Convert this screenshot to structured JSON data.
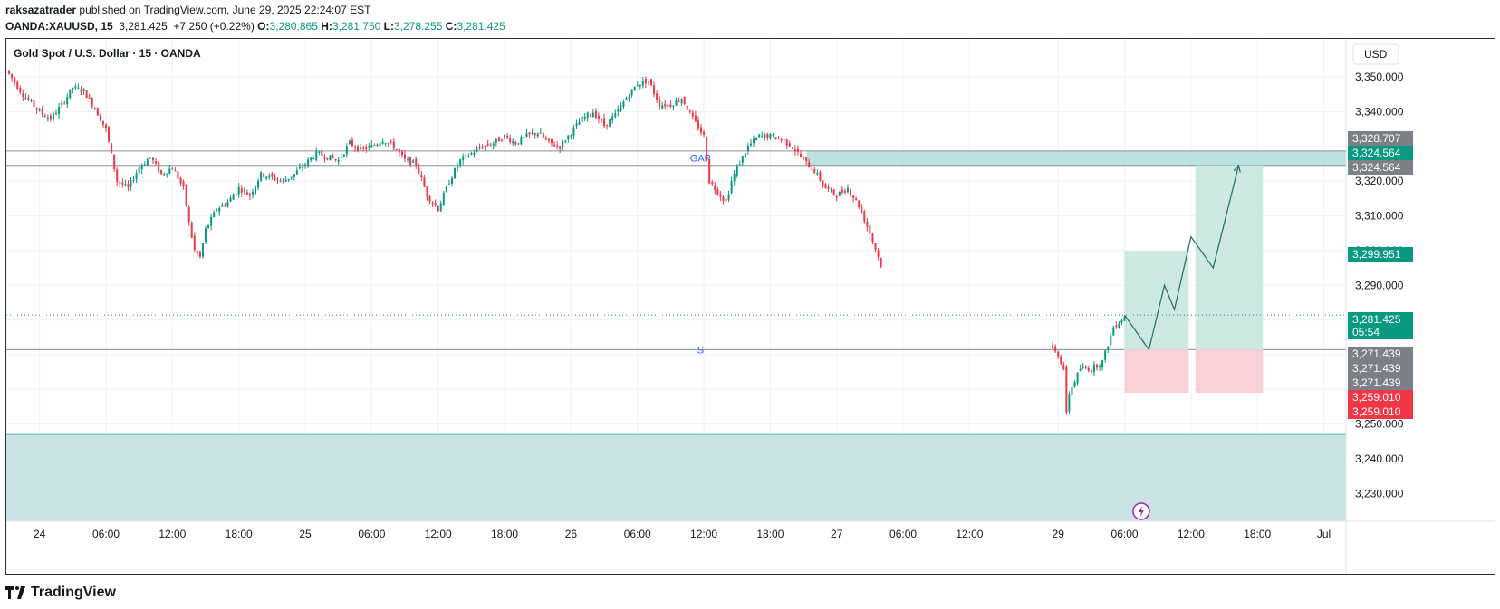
{
  "header": {
    "author": "raksazatrader",
    "published": "published on TradingView.com, June 29, 2025 22:24:07 EST",
    "symbol": "OANDA:XAUUSD, 15",
    "last": "3,281.425",
    "change": "+7.250 (+0.22%)",
    "open_label": "O:",
    "open": "3,280.865",
    "high_label": "H:",
    "high": "3,281.750",
    "low_label": "L:",
    "low": "3,278.255",
    "close_label": "C:",
    "close": "3,281.425"
  },
  "footer": {
    "brand": "TradingView"
  },
  "chart_data": {
    "type": "candlestick",
    "title": "Gold Spot / U.S. Dollar · 15 · OANDA",
    "currency": "USD",
    "ylim": [
      3222,
      3361
    ],
    "y_ticks": [
      "3,350.000",
      "3,340.000",
      "3,330.000",
      "3,320.000",
      "3,310.000",
      "3,300.000",
      "3,290.000",
      "3,280.000",
      "3,270.000",
      "3,260.000",
      "3,250.000",
      "3,240.000",
      "3,230.000"
    ],
    "y_tick_values": [
      3350,
      3340,
      3330,
      3320,
      3310,
      3300,
      3290,
      3280,
      3270,
      3260,
      3250,
      3240,
      3230
    ],
    "x_ticks": [
      {
        "label": "24",
        "hour": 0
      },
      {
        "label": "06:00",
        "hour": 6
      },
      {
        "label": "12:00",
        "hour": 12
      },
      {
        "label": "18:00",
        "hour": 18
      },
      {
        "label": "25",
        "hour": 24
      },
      {
        "label": "06:00",
        "hour": 30
      },
      {
        "label": "12:00",
        "hour": 36
      },
      {
        "label": "18:00",
        "hour": 42
      },
      {
        "label": "26",
        "hour": 48
      },
      {
        "label": "06:00",
        "hour": 54
      },
      {
        "label": "12:00",
        "hour": 60
      },
      {
        "label": "18:00",
        "hour": 66
      },
      {
        "label": "27",
        "hour": 72
      },
      {
        "label": "06:00",
        "hour": 78
      },
      {
        "label": "12:00",
        "hour": 84
      },
      {
        "label": "29",
        "hour": 92
      },
      {
        "label": "06:00",
        "hour": 98
      },
      {
        "label": "12:00",
        "hour": 104
      },
      {
        "label": "18:00",
        "hour": 110
      },
      {
        "label": "Jul",
        "hour": 116
      }
    ],
    "x_range_hours": [
      -3,
      118
    ],
    "price_path": [
      [
        -3,
        3352
      ],
      [
        -1.5,
        3345
      ],
      [
        0,
        3340
      ],
      [
        1,
        3338
      ],
      [
        2,
        3342
      ],
      [
        3,
        3347
      ],
      [
        4,
        3346
      ],
      [
        5,
        3341
      ],
      [
        6,
        3335
      ],
      [
        7,
        3320
      ],
      [
        8,
        3318
      ],
      [
        9,
        3324
      ],
      [
        10,
        3327
      ],
      [
        11,
        3322
      ],
      [
        12,
        3324
      ],
      [
        13,
        3318
      ],
      [
        13.5,
        3308
      ],
      [
        14,
        3300
      ],
      [
        14.5,
        3298
      ],
      [
        15,
        3306
      ],
      [
        16,
        3312
      ],
      [
        17,
        3314
      ],
      [
        18,
        3318
      ],
      [
        19,
        3316
      ],
      [
        20,
        3322
      ],
      [
        21,
        3321
      ],
      [
        22,
        3320
      ],
      [
        23,
        3322
      ],
      [
        24,
        3325
      ],
      [
        25,
        3328
      ],
      [
        26,
        3327
      ],
      [
        27,
        3326
      ],
      [
        28,
        3331
      ],
      [
        29,
        3329
      ],
      [
        30,
        3330
      ],
      [
        31,
        3332
      ],
      [
        32,
        3330
      ],
      [
        33,
        3326
      ],
      [
        34,
        3325
      ],
      [
        35,
        3316
      ],
      [
        36,
        3312
      ],
      [
        37,
        3320
      ],
      [
        38,
        3326
      ],
      [
        39,
        3328
      ],
      [
        40,
        3330
      ],
      [
        41,
        3331
      ],
      [
        42,
        3333
      ],
      [
        43,
        3331
      ],
      [
        44,
        3333
      ],
      [
        45,
        3334
      ],
      [
        46,
        3331
      ],
      [
        47,
        3330
      ],
      [
        48,
        3334
      ],
      [
        49,
        3338
      ],
      [
        50,
        3340
      ],
      [
        51,
        3336
      ],
      [
        52,
        3339
      ],
      [
        53,
        3344
      ],
      [
        54,
        3348
      ],
      [
        55,
        3349
      ],
      [
        56,
        3342
      ],
      [
        57,
        3342
      ],
      [
        58,
        3344
      ],
      [
        59,
        3338
      ],
      [
        60,
        3333
      ],
      [
        60.5,
        3320
      ],
      [
        61,
        3318
      ],
      [
        62,
        3314
      ],
      [
        62.5,
        3320
      ],
      [
        63,
        3324
      ],
      [
        64,
        3330
      ],
      [
        65,
        3333
      ],
      [
        66,
        3333
      ],
      [
        67,
        3332
      ],
      [
        68,
        3330
      ],
      [
        69,
        3326
      ],
      [
        70,
        3323
      ],
      [
        71,
        3318
      ],
      [
        72,
        3316
      ],
      [
        73,
        3318
      ],
      [
        74,
        3313
      ],
      [
        75,
        3305
      ],
      [
        76,
        3296
      ],
      [
        77,
        3296
      ],
      [
        78,
        3300
      ],
      [
        79,
        3296
      ],
      [
        80,
        3290
      ],
      [
        81,
        3288
      ],
      [
        82,
        3286
      ],
      [
        83,
        3285
      ],
      [
        84,
        3288
      ],
      [
        85,
        3281
      ],
      [
        86,
        3276
      ],
      [
        86.5,
        3262
      ],
      [
        87,
        3258
      ],
      [
        87.5,
        3268
      ],
      [
        88,
        3274
      ],
      [
        89,
        3276
      ],
      [
        90,
        3276
      ],
      [
        91,
        3273
      ],
      [
        92,
        3270
      ],
      [
        92.5,
        3266
      ],
      [
        92.8,
        3250
      ],
      [
        93,
        3259
      ],
      [
        94,
        3266
      ],
      [
        95,
        3266
      ],
      [
        96,
        3268
      ],
      [
        97,
        3278
      ],
      [
        98,
        3281
      ]
    ],
    "zones": [
      {
        "label": "GAP",
        "from": 3324.564,
        "to": 3328.707
      },
      {
        "label": "demand-zone",
        "from": 3222,
        "to": 3247
      }
    ],
    "lines": [
      {
        "label": "GAP",
        "price": 3328.707
      },
      {
        "label": "GAP",
        "price": 3324.564
      },
      {
        "label": "S",
        "price": 3271.439
      }
    ],
    "positions": [
      {
        "entry": 3271.439,
        "target": 3299.951,
        "stop": 3259.01,
        "from_hour": 98,
        "to_hour": 103.8
      },
      {
        "entry": 3271.439,
        "target": 3324.564,
        "stop": 3259.01,
        "from_hour": 104.4,
        "to_hour": 110.5
      }
    ],
    "projection": [
      [
        98,
        3281.425
      ],
      [
        100.2,
        3271.439
      ],
      [
        101.6,
        3290
      ],
      [
        102.5,
        3283
      ],
      [
        104,
        3304
      ],
      [
        106,
        3295
      ],
      [
        108.3,
        3324.564
      ]
    ],
    "price_labels": [
      {
        "text": "3,328.707",
        "price": 3328.707,
        "color": "#7b7f87"
      },
      {
        "text": "3,324.564",
        "price": 3324.564,
        "color": "#089981"
      },
      {
        "text": "3,324.564",
        "price": 3324.564,
        "color": "#7b7f87"
      },
      {
        "text": "3,299.951",
        "price": 3299.951,
        "color": "#089981"
      },
      {
        "text": "3,281.425",
        "price": 3281.425,
        "color": "#089981",
        "sub": "05:54"
      },
      {
        "text": "3,271.439",
        "price": 3271.439,
        "color": "#7b7f87"
      },
      {
        "text": "3,271.439",
        "price": 3271.439,
        "color": "#7b7f87"
      },
      {
        "text": "3,271.439",
        "price": 3271.439,
        "color": "#7b7f87"
      },
      {
        "text": "3,259.010",
        "price": 3259.01,
        "color": "#f23645"
      },
      {
        "text": "3,259.010",
        "price": 3259.01,
        "color": "#f23645"
      }
    ],
    "colors": {
      "up": "#089981",
      "down": "#f23645",
      "gap_zone": "#9dd6d6",
      "demand_zone": "#cbe3e5",
      "long_target": "#cde9e1",
      "long_stop": "#f9d0d5",
      "grid": "#f0f3fa"
    },
    "grid": true
  }
}
